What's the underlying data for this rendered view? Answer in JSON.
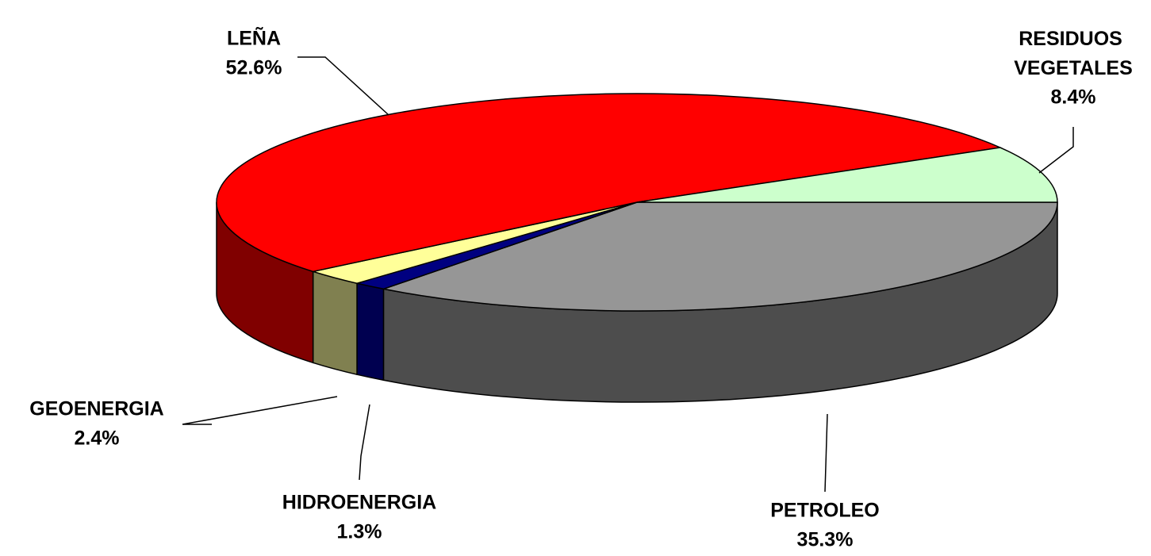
{
  "chart_data": {
    "type": "pie3d",
    "categories": [
      "PETROLEO",
      "HIDROENERGIA",
      "GEOENERGIA",
      "LEÑA",
      "RESIDUOS VEGETALES"
    ],
    "values": [
      35.3,
      1.3,
      2.4,
      52.6,
      8.4
    ],
    "value_labels": [
      "35.3%",
      "1.3%",
      "2.4%",
      "52.6%",
      "8.4%"
    ],
    "colors": [
      "#969696",
      "#000080",
      "#ffff99",
      "#ff0000",
      "#ccffcc"
    ],
    "side_colors": [
      "#4d4d4d",
      "#000050",
      "#808050",
      "#800000",
      "#80a080"
    ]
  }
}
